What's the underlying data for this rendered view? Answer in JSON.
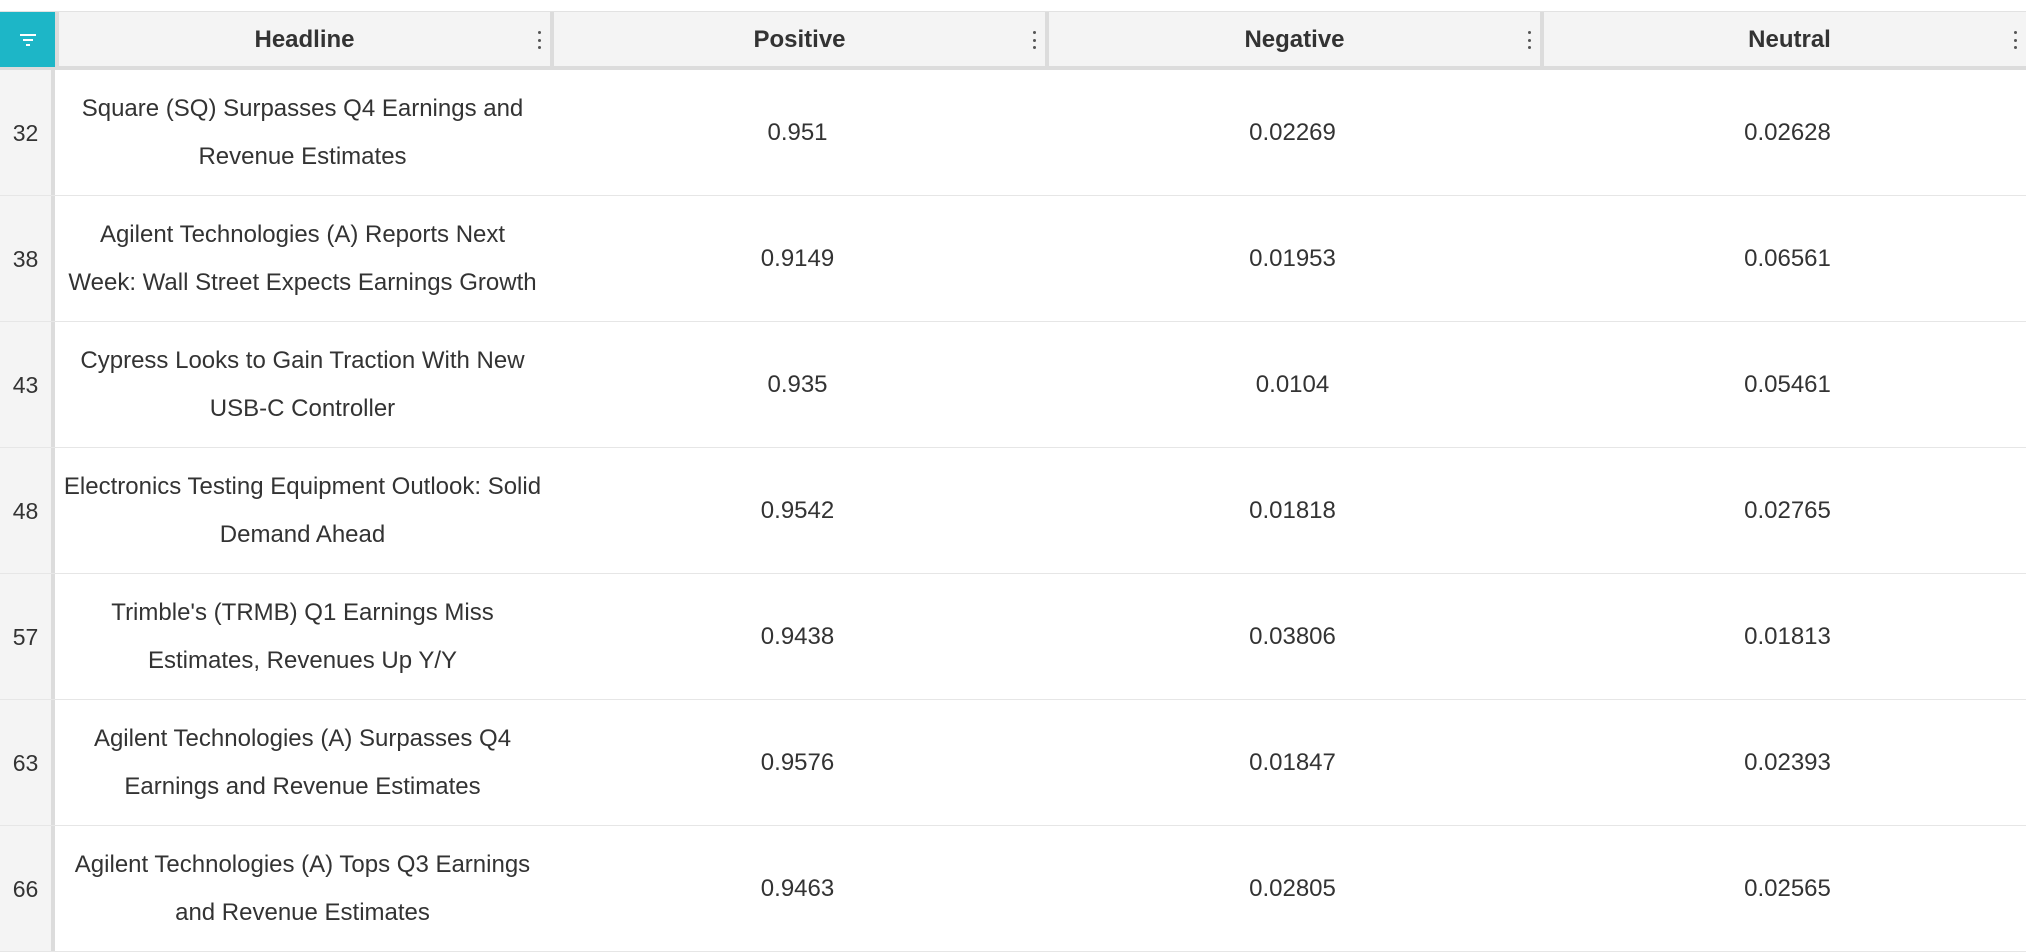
{
  "columns": {
    "headline": "Headline",
    "positive": "Positive",
    "negative": "Negative",
    "neutral": "Neutral"
  },
  "icons": {
    "filter": "filter-icon",
    "column_menu": "vertical-ellipsis-icon"
  },
  "colors": {
    "accent": "#1db6c7",
    "header_bg": "#f4f4f4"
  },
  "rows": [
    {
      "index": "32",
      "headline": "Square (SQ) Surpasses Q4 Earnings and Revenue Estimates",
      "positive": "0.951",
      "negative": "0.02269",
      "neutral": "0.02628"
    },
    {
      "index": "38",
      "headline": "Agilent Technologies (A) Reports Next Week: Wall Street Expects Earnings Growth",
      "positive": "0.9149",
      "negative": "0.01953",
      "neutral": "0.06561"
    },
    {
      "index": "43",
      "headline": "Cypress Looks to Gain Traction With New USB-C Controller",
      "positive": "0.935",
      "negative": "0.0104",
      "neutral": "0.05461"
    },
    {
      "index": "48",
      "headline": "Electronics Testing Equipment Outlook: Solid Demand Ahead",
      "positive": "0.9542",
      "negative": "0.01818",
      "neutral": "0.02765"
    },
    {
      "index": "57",
      "headline": "Trimble's (TRMB) Q1 Earnings Miss Estimates, Revenues Up Y/Y",
      "positive": "0.9438",
      "negative": "0.03806",
      "neutral": "0.01813"
    },
    {
      "index": "63",
      "headline": "Agilent Technologies (A) Surpasses Q4 Earnings and Revenue Estimates",
      "positive": "0.9576",
      "negative": "0.01847",
      "neutral": "0.02393"
    },
    {
      "index": "66",
      "headline": "Agilent Technologies (A) Tops Q3 Earnings and Revenue Estimates",
      "positive": "0.9463",
      "negative": "0.02805",
      "neutral": "0.02565"
    }
  ]
}
